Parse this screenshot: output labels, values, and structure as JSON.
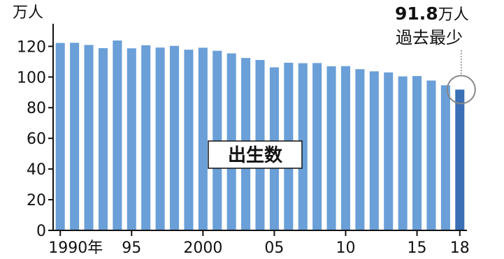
{
  "chart_data": {
    "type": "bar",
    "unit_label": "万人",
    "series_label": "出生数",
    "categories": [
      "1990",
      "1991",
      "1992",
      "1993",
      "1994",
      "1995",
      "1996",
      "1997",
      "1998",
      "1999",
      "2000",
      "2001",
      "2002",
      "2003",
      "2004",
      "2005",
      "2006",
      "2007",
      "2008",
      "2009",
      "2010",
      "2011",
      "2012",
      "2013",
      "2014",
      "2015",
      "2016",
      "2017",
      "2018"
    ],
    "values": [
      122.2,
      122.3,
      120.9,
      118.8,
      123.8,
      118.7,
      120.7,
      119.2,
      120.3,
      117.8,
      119.1,
      117.1,
      115.4,
      112.4,
      111.1,
      106.3,
      109.3,
      109.0,
      109.1,
      107.0,
      107.1,
      105.1,
      103.7,
      103.0,
      100.4,
      100.6,
      97.7,
      94.6,
      91.8
    ],
    "x_tick_labels": [
      {
        "index": 0,
        "label": "1990年"
      },
      {
        "index": 5,
        "label": "95"
      },
      {
        "index": 10,
        "label": "2000"
      },
      {
        "index": 15,
        "label": "05"
      },
      {
        "index": 20,
        "label": "10"
      },
      {
        "index": 25,
        "label": "15"
      },
      {
        "index": 28,
        "label": "18"
      }
    ],
    "y_ticks": [
      0,
      20,
      40,
      60,
      80,
      100,
      120
    ],
    "ylim": [
      0,
      132
    ],
    "annotation": {
      "index": 28,
      "value_text": "91.8",
      "unit_text": "万人",
      "note_text": "過去最少"
    },
    "colors": {
      "bar": "#6a9fd8",
      "highlight_bar": "#3b6fb6",
      "axis": "#111111",
      "circle": "#888888"
    },
    "grid": false,
    "legend": "none"
  }
}
